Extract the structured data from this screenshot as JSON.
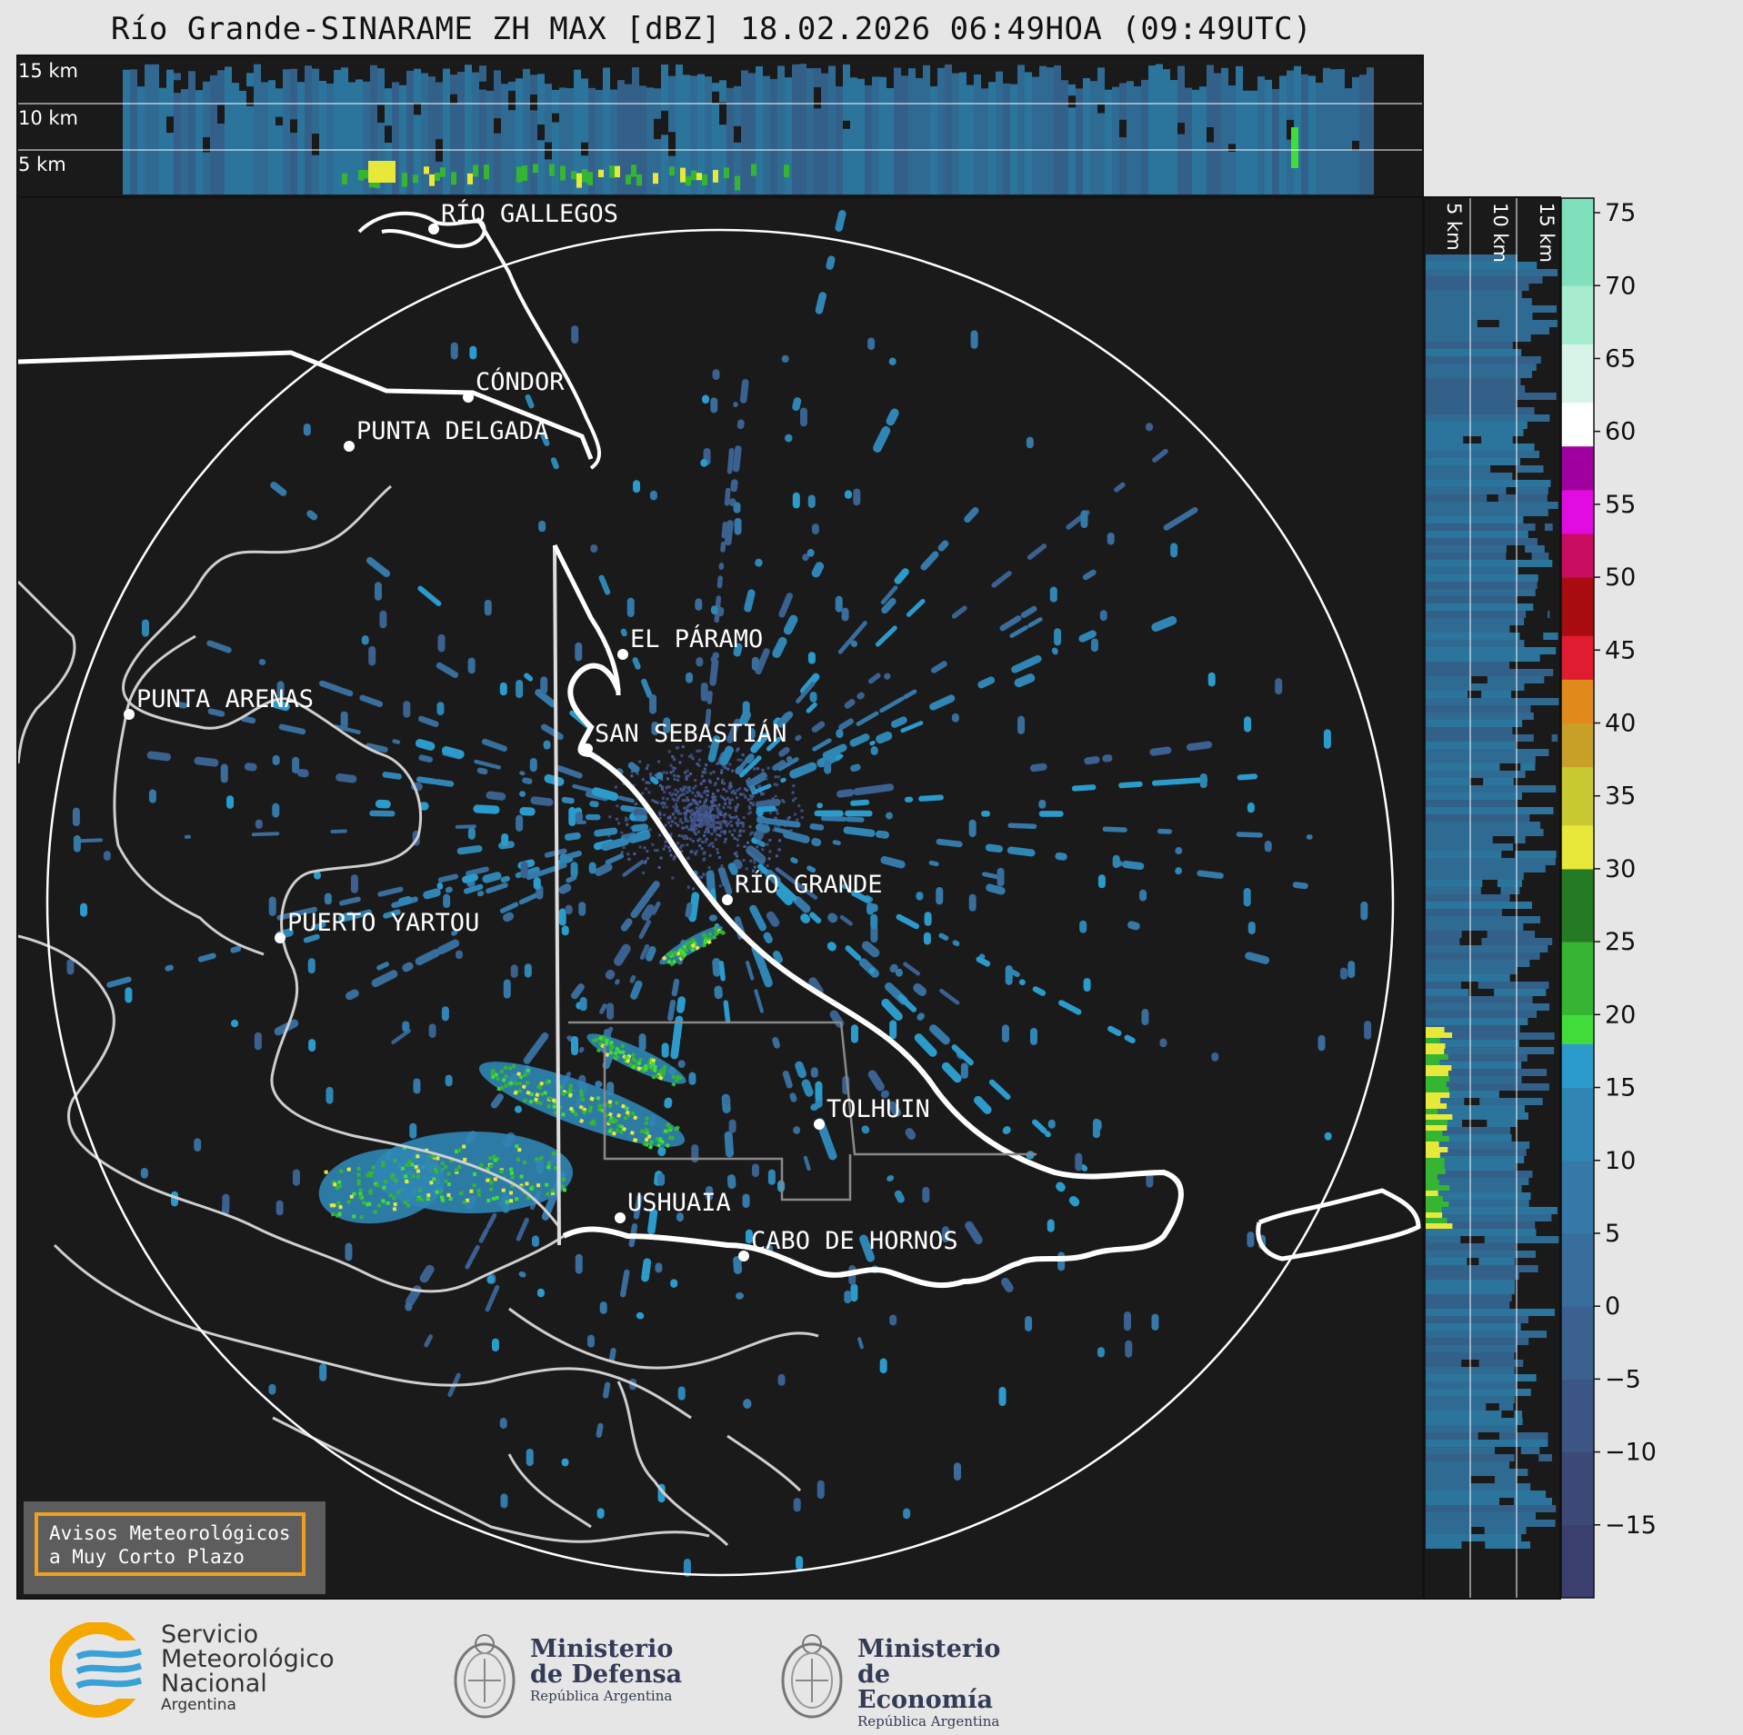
{
  "title": "Río Grande-SINARAME ZH MAX [dBZ] 18.02.2026 06:49HOA (09:49UTC)",
  "top_panel": {
    "altitude_labels": [
      "15 km",
      "10 km",
      "5 km"
    ]
  },
  "side_panel": {
    "altitude_labels": [
      "5 km",
      "10 km",
      "15 km"
    ]
  },
  "map": {
    "cities": [
      {
        "name": "RÍO GALLEGOS"
      },
      {
        "name": "CÓNDOR"
      },
      {
        "name": "PUNTA DELGADA"
      },
      {
        "name": "EL PÁRAMO"
      },
      {
        "name": "PUNTA ARENAS"
      },
      {
        "name": "SAN SEBASTIÁN"
      },
      {
        "name": "RÍO GRANDE"
      },
      {
        "name": "PUERTO YARTOU"
      },
      {
        "name": "TOLHUIN"
      },
      {
        "name": "USHUAIA"
      },
      {
        "name": "CABO DE HORNOS"
      }
    ]
  },
  "colorbar": {
    "unit": "dBZ",
    "ticks": [
      "75",
      "70",
      "65",
      "60",
      "55",
      "50",
      "45",
      "40",
      "35",
      "30",
      "25",
      "20",
      "15",
      "10",
      "5",
      "0",
      "−5",
      "−10",
      "−15"
    ],
    "min": -20,
    "max": 76,
    "colors": [
      {
        "from": -20,
        "to": -15,
        "color": "#3b3f6e"
      },
      {
        "from": -15,
        "to": -10,
        "color": "#3d4a78"
      },
      {
        "from": -10,
        "to": -5,
        "color": "#3b5584"
      },
      {
        "from": -5,
        "to": 0,
        "color": "#3a6190"
      },
      {
        "from": 0,
        "to": 5,
        "color": "#386d9c"
      },
      {
        "from": 5,
        "to": 10,
        "color": "#3479a8"
      },
      {
        "from": 10,
        "to": 15,
        "color": "#2f86b5"
      },
      {
        "from": 15,
        "to": 18,
        "color": "#2b9bcc"
      },
      {
        "from": 18,
        "to": 20,
        "color": "#3fdc3a"
      },
      {
        "from": 20,
        "to": 25,
        "color": "#36b532"
      },
      {
        "from": 25,
        "to": 30,
        "color": "#257a24"
      },
      {
        "from": 30,
        "to": 33,
        "color": "#e8e83a"
      },
      {
        "from": 33,
        "to": 37,
        "color": "#c8c830"
      },
      {
        "from": 37,
        "to": 40,
        "color": "#c8a028"
      },
      {
        "from": 40,
        "to": 43,
        "color": "#e08a1c"
      },
      {
        "from": 43,
        "to": 46,
        "color": "#e01c30"
      },
      {
        "from": 46,
        "to": 50,
        "color": "#a80c10"
      },
      {
        "from": 50,
        "to": 53,
        "color": "#c80c60"
      },
      {
        "from": 53,
        "to": 56,
        "color": "#e00ce0"
      },
      {
        "from": 56,
        "to": 59,
        "color": "#a000a0"
      },
      {
        "from": 59,
        "to": 62,
        "color": "#ffffff"
      },
      {
        "from": 62,
        "to": 66,
        "color": "#d8f4e8"
      },
      {
        "from": 66,
        "to": 70,
        "color": "#a8ecd0"
      },
      {
        "from": 70,
        "to": 76,
        "color": "#80e0bc"
      }
    ]
  },
  "alert_box": {
    "line1": "Avisos Meteorológicos",
    "line2": "a Muy Corto Plazo"
  },
  "logos": {
    "smn": {
      "line1": "Servicio",
      "line2": "Meteorológico",
      "line3": "Nacional",
      "line4": "Argentina"
    },
    "defensa": {
      "line1": "Ministerio",
      "line2": "de Defensa",
      "sub": "República Argentina"
    },
    "economia": {
      "line1": "Ministerio",
      "line2": "de Economía",
      "sub": "República Argentina"
    }
  }
}
